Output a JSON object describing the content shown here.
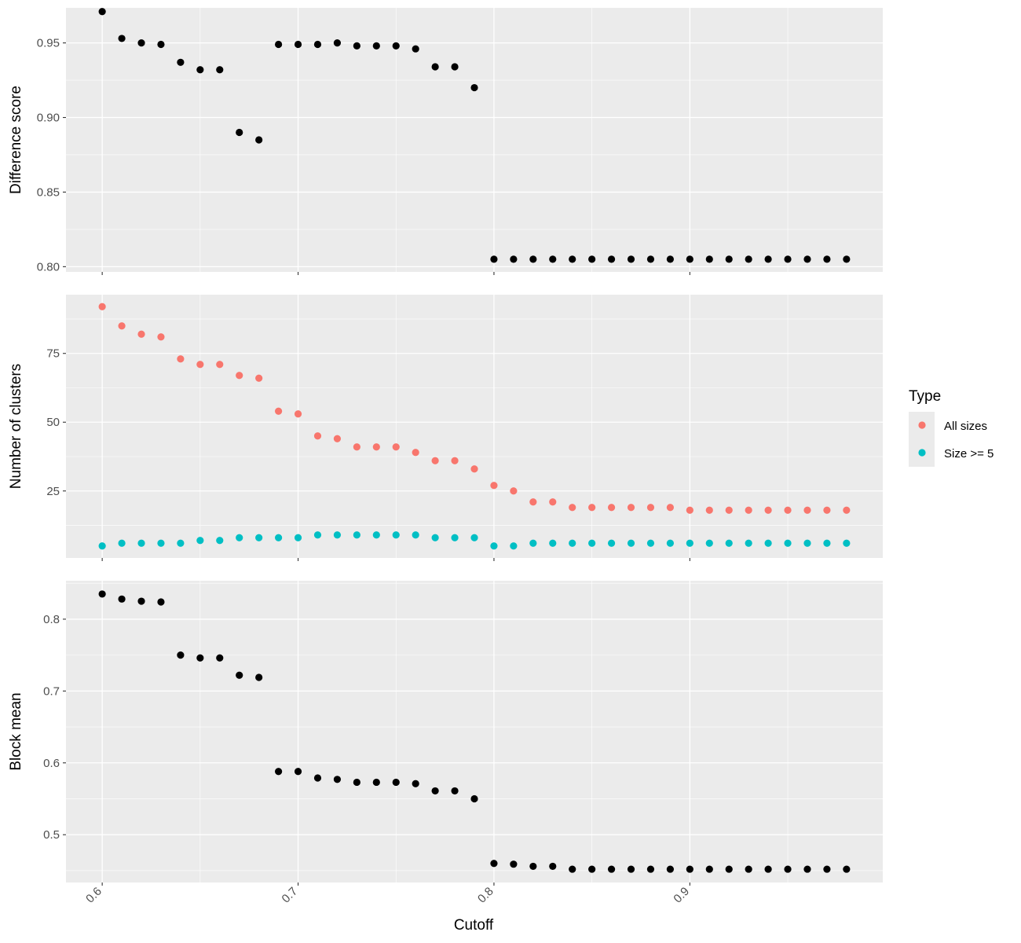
{
  "chart_data": {
    "type": "scatter",
    "x_label": "Cutoff",
    "x_ticks": [
      "0.6",
      "0.7",
      "0.8",
      "0.9"
    ],
    "x_values": [
      0.6,
      0.61,
      0.62,
      0.63,
      0.64,
      0.65,
      0.66,
      0.67,
      0.68,
      0.69,
      0.7,
      0.71,
      0.72,
      0.73,
      0.74,
      0.75,
      0.76,
      0.77,
      0.78,
      0.79,
      0.8,
      0.81,
      0.82,
      0.83,
      0.84,
      0.85,
      0.86,
      0.87,
      0.88,
      0.89,
      0.9,
      0.91,
      0.92,
      0.93,
      0.94,
      0.95,
      0.96,
      0.97,
      0.98
    ],
    "xlim": [
      0.5815,
      0.9985
    ],
    "grid": true,
    "legend": {
      "title": "Type",
      "position": "right",
      "entries": [
        {
          "label": "All sizes",
          "color": "#F8766D"
        },
        {
          "label": "Size >= 5",
          "color": "#00BFC4"
        }
      ]
    },
    "panels": [
      {
        "ylabel": "Difference score",
        "ylim": [
          0.7965,
          0.9735
        ],
        "y_ticks": [
          "0.80",
          "0.85",
          "0.90",
          "0.95"
        ],
        "y_tick_values": [
          0.8,
          0.85,
          0.9,
          0.95
        ],
        "series": [
          {
            "color": "#000000",
            "values": [
              0.971,
              0.953,
              0.95,
              0.949,
              0.937,
              0.932,
              0.932,
              0.89,
              0.885,
              0.949,
              0.949,
              0.949,
              0.95,
              0.948,
              0.948,
              0.948,
              0.946,
              0.934,
              0.934,
              0.92,
              0.805,
              0.805,
              0.805,
              0.805,
              0.805,
              0.805,
              0.805,
              0.805,
              0.805,
              0.805,
              0.805,
              0.805,
              0.805,
              0.805,
              0.805,
              0.805,
              0.805,
              0.805,
              0.805
            ]
          }
        ]
      },
      {
        "ylabel": "Number of clusters",
        "ylim": [
          0.65,
          96.35
        ],
        "y_ticks": [
          "25",
          "50",
          "75"
        ],
        "y_tick_values": [
          25,
          50,
          75
        ],
        "series": [
          {
            "name": "All sizes",
            "color": "#F8766D",
            "values": [
              92,
              85,
              82,
              81,
              73,
              71,
              71,
              67,
              66,
              54,
              53,
              45,
              44,
              41,
              41,
              41,
              39,
              36,
              36,
              33,
              27,
              25,
              21,
              21,
              19,
              19,
              19,
              19,
              19,
              19,
              18,
              18,
              18,
              18,
              18,
              18,
              18,
              18,
              18
            ]
          },
          {
            "name": "Size >= 5",
            "color": "#00BFC4",
            "values": [
              5,
              6,
              6,
              6,
              6,
              7,
              7,
              8,
              8,
              8,
              8,
              9,
              9,
              9,
              9,
              9,
              9,
              8,
              8,
              8,
              5,
              5,
              6,
              6,
              6,
              6,
              6,
              6,
              6,
              6,
              6,
              6,
              6,
              6,
              6,
              6,
              6,
              6,
              6
            ]
          }
        ]
      },
      {
        "ylabel": "Block mean",
        "ylim": [
          0.4335,
          0.8535
        ],
        "y_ticks": [
          "0.5",
          "0.6",
          "0.7",
          "0.8"
        ],
        "y_tick_values": [
          0.5,
          0.6,
          0.7,
          0.8
        ],
        "series": [
          {
            "color": "#000000",
            "values": [
              0.835,
              0.828,
              0.825,
              0.824,
              0.75,
              0.746,
              0.746,
              0.722,
              0.719,
              0.588,
              0.588,
              0.579,
              0.577,
              0.573,
              0.573,
              0.573,
              0.571,
              0.561,
              0.561,
              0.55,
              0.46,
              0.459,
              0.456,
              0.456,
              0.452,
              0.452,
              0.452,
              0.452,
              0.452,
              0.452,
              0.452,
              0.452,
              0.452,
              0.452,
              0.452,
              0.452,
              0.452,
              0.452,
              0.452
            ]
          }
        ]
      }
    ]
  }
}
